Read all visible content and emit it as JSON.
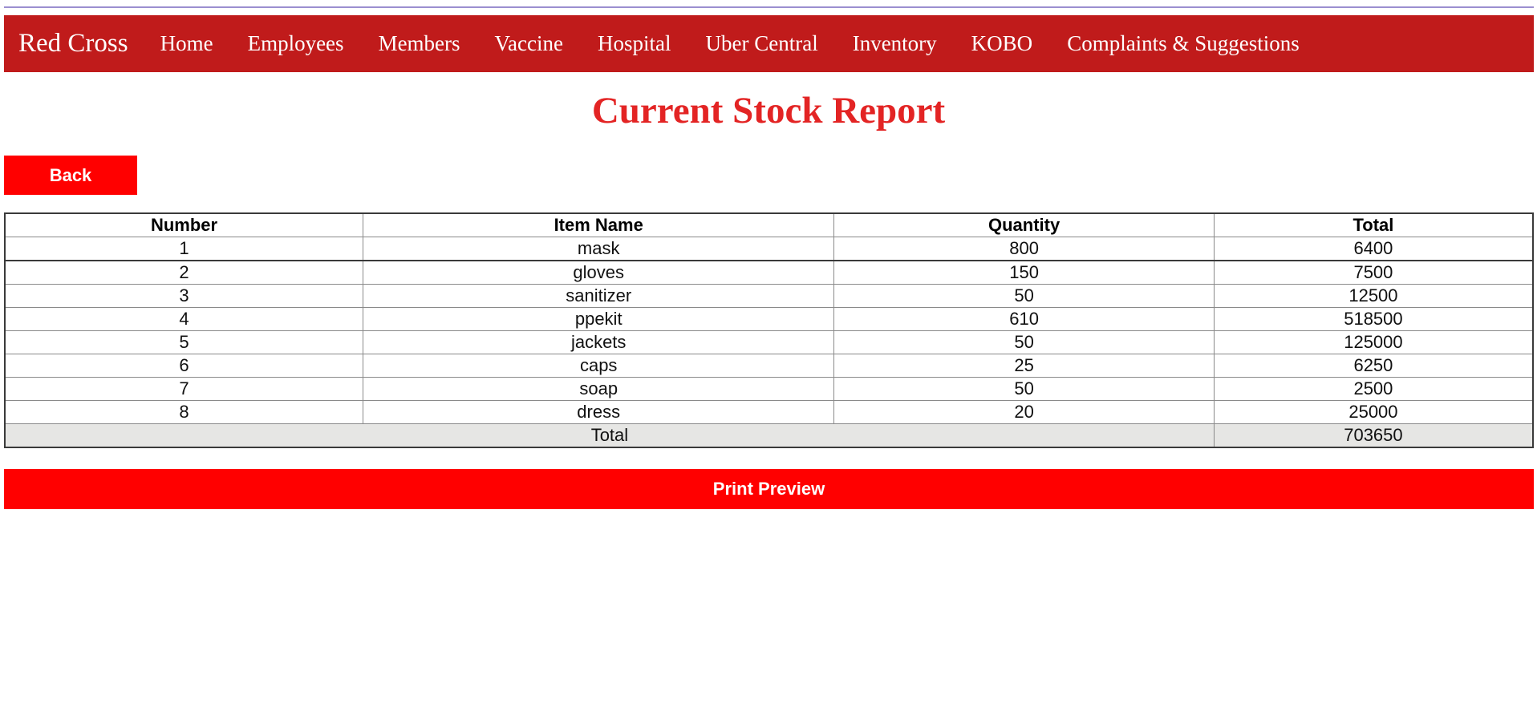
{
  "navbar": {
    "brand": "Red Cross",
    "items": [
      {
        "label": "Home"
      },
      {
        "label": "Employees"
      },
      {
        "label": "Members"
      },
      {
        "label": "Vaccine"
      },
      {
        "label": "Hospital"
      },
      {
        "label": "Uber Central"
      },
      {
        "label": "Inventory"
      },
      {
        "label": "KOBO"
      },
      {
        "label": "Complaints & Suggestions"
      }
    ],
    "background_color": "#c01b1b"
  },
  "page": {
    "title": "Current Stock Report",
    "title_color": "#e32424"
  },
  "actions": {
    "back_label": "Back",
    "print_label": "Print Preview",
    "button_color": "#ff0000"
  },
  "table": {
    "headers": [
      "Number",
      "Item Name",
      "Quantity",
      "Total"
    ],
    "rows": [
      {
        "number": "1",
        "item": "mask",
        "quantity": "800",
        "total": "6400"
      },
      {
        "number": "2",
        "item": "gloves",
        "quantity": "150",
        "total": "7500"
      },
      {
        "number": "3",
        "item": "sanitizer",
        "quantity": "50",
        "total": "12500"
      },
      {
        "number": "4",
        "item": "ppekit",
        "quantity": "610",
        "total": "518500"
      },
      {
        "number": "5",
        "item": "jackets",
        "quantity": "50",
        "total": "125000"
      },
      {
        "number": "6",
        "item": "caps",
        "quantity": "25",
        "total": "6250"
      },
      {
        "number": "7",
        "item": "soap",
        "quantity": "50",
        "total": "2500"
      },
      {
        "number": "8",
        "item": "dress",
        "quantity": "20",
        "total": "25000"
      }
    ],
    "footer": {
      "label": "Total",
      "value": "703650"
    }
  }
}
